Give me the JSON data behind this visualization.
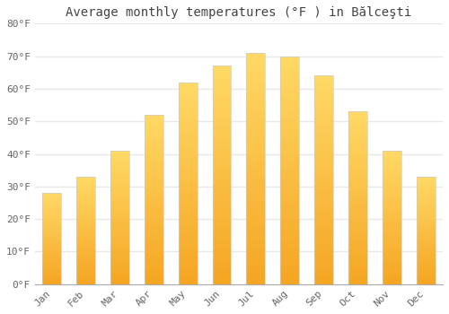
{
  "title": "Average monthly temperatures (°F ) in Bălceşti",
  "months": [
    "Jan",
    "Feb",
    "Mar",
    "Apr",
    "May",
    "Jun",
    "Jul",
    "Aug",
    "Sep",
    "Oct",
    "Nov",
    "Dec"
  ],
  "values": [
    28,
    33,
    41,
    52,
    62,
    67,
    71,
    70,
    64,
    53,
    41,
    33
  ],
  "bar_color_bottom": "#F5A623",
  "bar_color_top": "#FFD966",
  "bar_edge_color": "#cccccc",
  "ylim": [
    0,
    80
  ],
  "yticks": [
    0,
    10,
    20,
    30,
    40,
    50,
    60,
    70,
    80
  ],
  "ylabel_suffix": "°F",
  "background_color": "#ffffff",
  "grid_color": "#e8e8e8",
  "title_fontsize": 10,
  "tick_fontsize": 8,
  "tick_color": "#666666",
  "bar_width": 0.55
}
